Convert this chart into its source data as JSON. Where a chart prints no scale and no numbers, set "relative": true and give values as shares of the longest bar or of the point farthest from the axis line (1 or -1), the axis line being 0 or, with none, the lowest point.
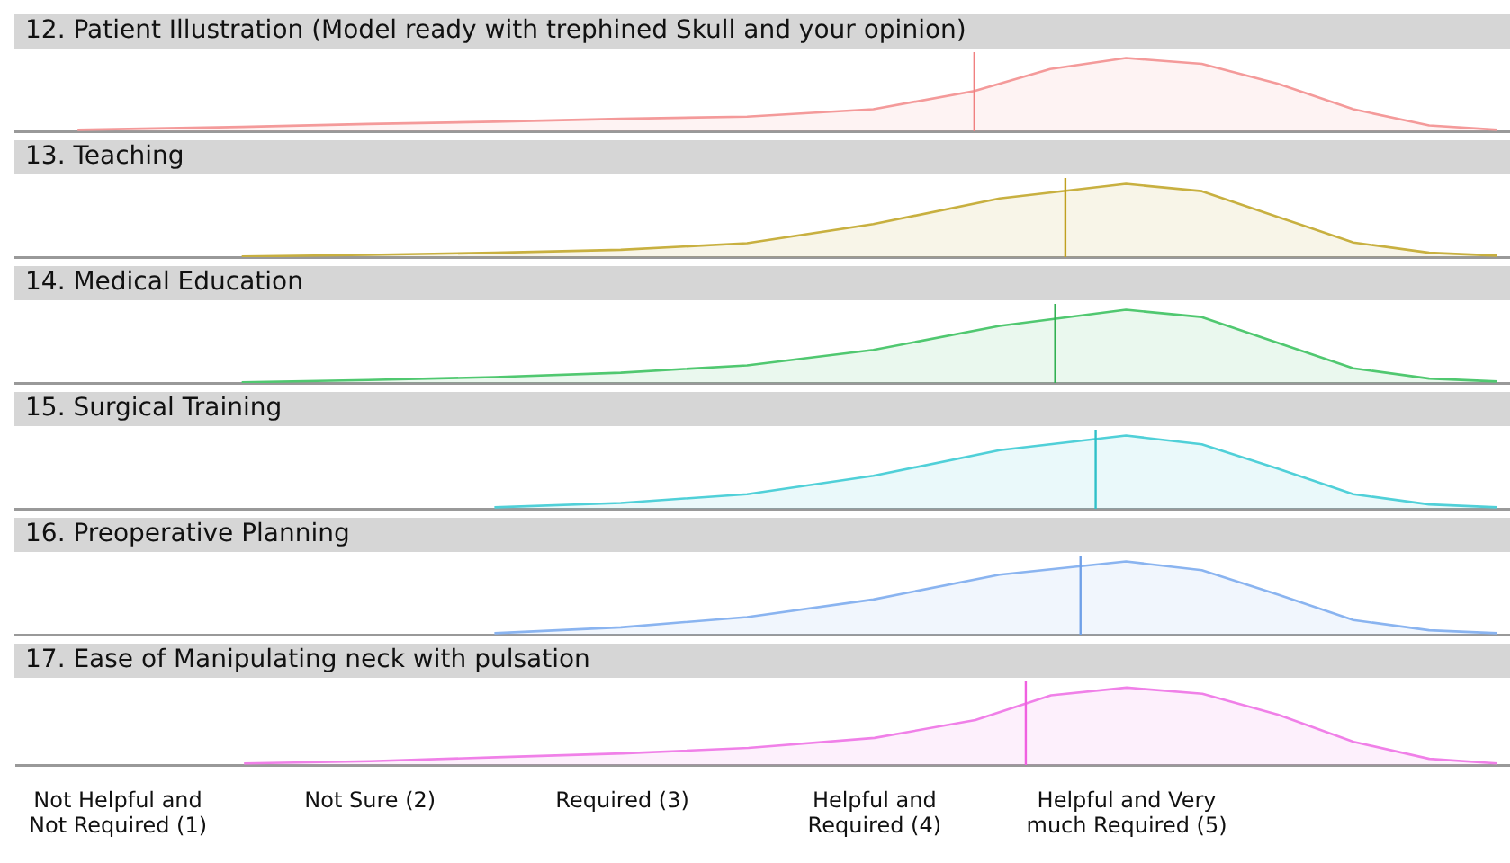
{
  "chart_data": [
    {
      "type": "area",
      "title": "12. Patient Illustration (Model ready with trephined Skull and your opinion)",
      "relative": true,
      "color": "#f49a9a",
      "tick_labels": false,
      "xlim": [
        0.6,
        6.52
      ],
      "xticks": [
        {
          "value": 1,
          "label": null
        },
        {
          "value": 2,
          "label": null
        },
        {
          "value": 3,
          "label": null
        },
        {
          "value": 4,
          "label": null
        },
        {
          "value": 5,
          "label": null
        }
      ],
      "x": [
        0.85,
        1.5,
        2,
        2.5,
        3,
        3.5,
        4,
        4.4,
        4.7,
        5,
        5.3,
        5.6,
        5.9,
        6.2,
        6.47
      ],
      "values": [
        0.02,
        0.06,
        0.1,
        0.13,
        0.17,
        0.2,
        0.3,
        0.55,
        0.85,
        1,
        0.92,
        0.65,
        0.3,
        0.08,
        0.02
      ],
      "ref_lines": [
        {
          "axis": "x",
          "value": 4.4,
          "color": "#f08080"
        }
      ]
    },
    {
      "type": "area",
      "title": "13. Teaching",
      "relative": true,
      "color": "#c8b040",
      "tick_labels": false,
      "xlim": [
        0.6,
        6.52
      ],
      "xticks": [
        {
          "value": 1,
          "label": null
        },
        {
          "value": 2,
          "label": null
        },
        {
          "value": 3,
          "label": null
        },
        {
          "value": 4,
          "label": null
        },
        {
          "value": 5,
          "label": null
        }
      ],
      "x": [
        1.5,
        2,
        2.5,
        3,
        3.5,
        4,
        4.5,
        5,
        5.3,
        5.6,
        5.9,
        6.2,
        6.47
      ],
      "values": [
        0.01,
        0.03,
        0.06,
        0.1,
        0.19,
        0.45,
        0.8,
        1,
        0.9,
        0.55,
        0.2,
        0.06,
        0.02
      ],
      "ref_lines": [
        {
          "axis": "x",
          "value": 4.76,
          "color": "#c0a020"
        }
      ]
    },
    {
      "type": "area",
      "title": "14. Medical Education",
      "relative": true,
      "color": "#50c870",
      "tick_labels": false,
      "xlim": [
        0.6,
        6.52
      ],
      "xticks": [
        {
          "value": 1,
          "label": null
        },
        {
          "value": 2,
          "label": null
        },
        {
          "value": 3,
          "label": null
        },
        {
          "value": 4,
          "label": null
        },
        {
          "value": 5,
          "label": null
        }
      ],
      "x": [
        1.5,
        2,
        2.5,
        3,
        3.5,
        4,
        4.5,
        5,
        5.3,
        5.6,
        5.9,
        6.2,
        6.47
      ],
      "values": [
        0.01,
        0.04,
        0.08,
        0.14,
        0.24,
        0.45,
        0.78,
        1,
        0.9,
        0.55,
        0.2,
        0.06,
        0.02
      ],
      "ref_lines": [
        {
          "axis": "x",
          "value": 4.72,
          "color": "#30b050"
        }
      ]
    },
    {
      "type": "area",
      "title": "15. Surgical Training",
      "relative": true,
      "color": "#50d0d8",
      "tick_labels": false,
      "xlim": [
        0.6,
        6.52
      ],
      "xticks": [
        {
          "value": 1,
          "label": null
        },
        {
          "value": 2,
          "label": null
        },
        {
          "value": 3,
          "label": null
        },
        {
          "value": 4,
          "label": null
        },
        {
          "value": 5,
          "label": null
        }
      ],
      "x": [
        2.5,
        3,
        3.5,
        4,
        4.5,
        5,
        5.3,
        5.6,
        5.9,
        6.2,
        6.47
      ],
      "values": [
        0.02,
        0.08,
        0.2,
        0.45,
        0.8,
        1,
        0.88,
        0.55,
        0.2,
        0.06,
        0.02
      ],
      "ref_lines": [
        {
          "axis": "x",
          "value": 4.88,
          "color": "#30c0c8"
        }
      ]
    },
    {
      "type": "area",
      "title": "16. Preoperative Planning",
      "relative": true,
      "color": "#8ab4f0",
      "tick_labels": false,
      "xlim": [
        0.6,
        6.52
      ],
      "xticks": [
        {
          "value": 1,
          "label": null
        },
        {
          "value": 2,
          "label": null
        },
        {
          "value": 3,
          "label": null
        },
        {
          "value": 4,
          "label": null
        },
        {
          "value": 5,
          "label": null
        }
      ],
      "x": [
        2.5,
        3,
        3.5,
        4,
        4.5,
        5,
        5.3,
        5.6,
        5.9,
        6.2,
        6.47
      ],
      "values": [
        0.02,
        0.1,
        0.24,
        0.48,
        0.82,
        1,
        0.88,
        0.55,
        0.2,
        0.06,
        0.02
      ],
      "ref_lines": [
        {
          "axis": "x",
          "value": 4.82,
          "color": "#70a0e8"
        }
      ]
    },
    {
      "type": "area",
      "title": "17. Ease of Manipulating neck with pulsation",
      "relative": true,
      "color": "#f080e8",
      "tick_labels": "x",
      "xlim": [
        0.6,
        6.52
      ],
      "xticks": [
        {
          "value": 1,
          "label": "Not Helpful and\nNot Required (1)"
        },
        {
          "value": 2,
          "label": "Not Sure (2)"
        },
        {
          "value": 3,
          "label": "Required (3)"
        },
        {
          "value": 4,
          "label": "Helpful and\nRequired (4)"
        },
        {
          "value": 5,
          "label": "Helpful and Very\nmuch Required (5)"
        }
      ],
      "x": [
        1.5,
        2,
        2.5,
        3,
        3.5,
        4,
        4.4,
        4.7,
        5,
        5.3,
        5.6,
        5.9,
        6.2,
        6.47
      ],
      "values": [
        0.02,
        0.05,
        0.1,
        0.15,
        0.22,
        0.35,
        0.58,
        0.9,
        1,
        0.92,
        0.65,
        0.3,
        0.08,
        0.02
      ],
      "ref_lines": [
        {
          "axis": "x",
          "value": 4.6,
          "color": "#f060e0"
        }
      ]
    }
  ]
}
